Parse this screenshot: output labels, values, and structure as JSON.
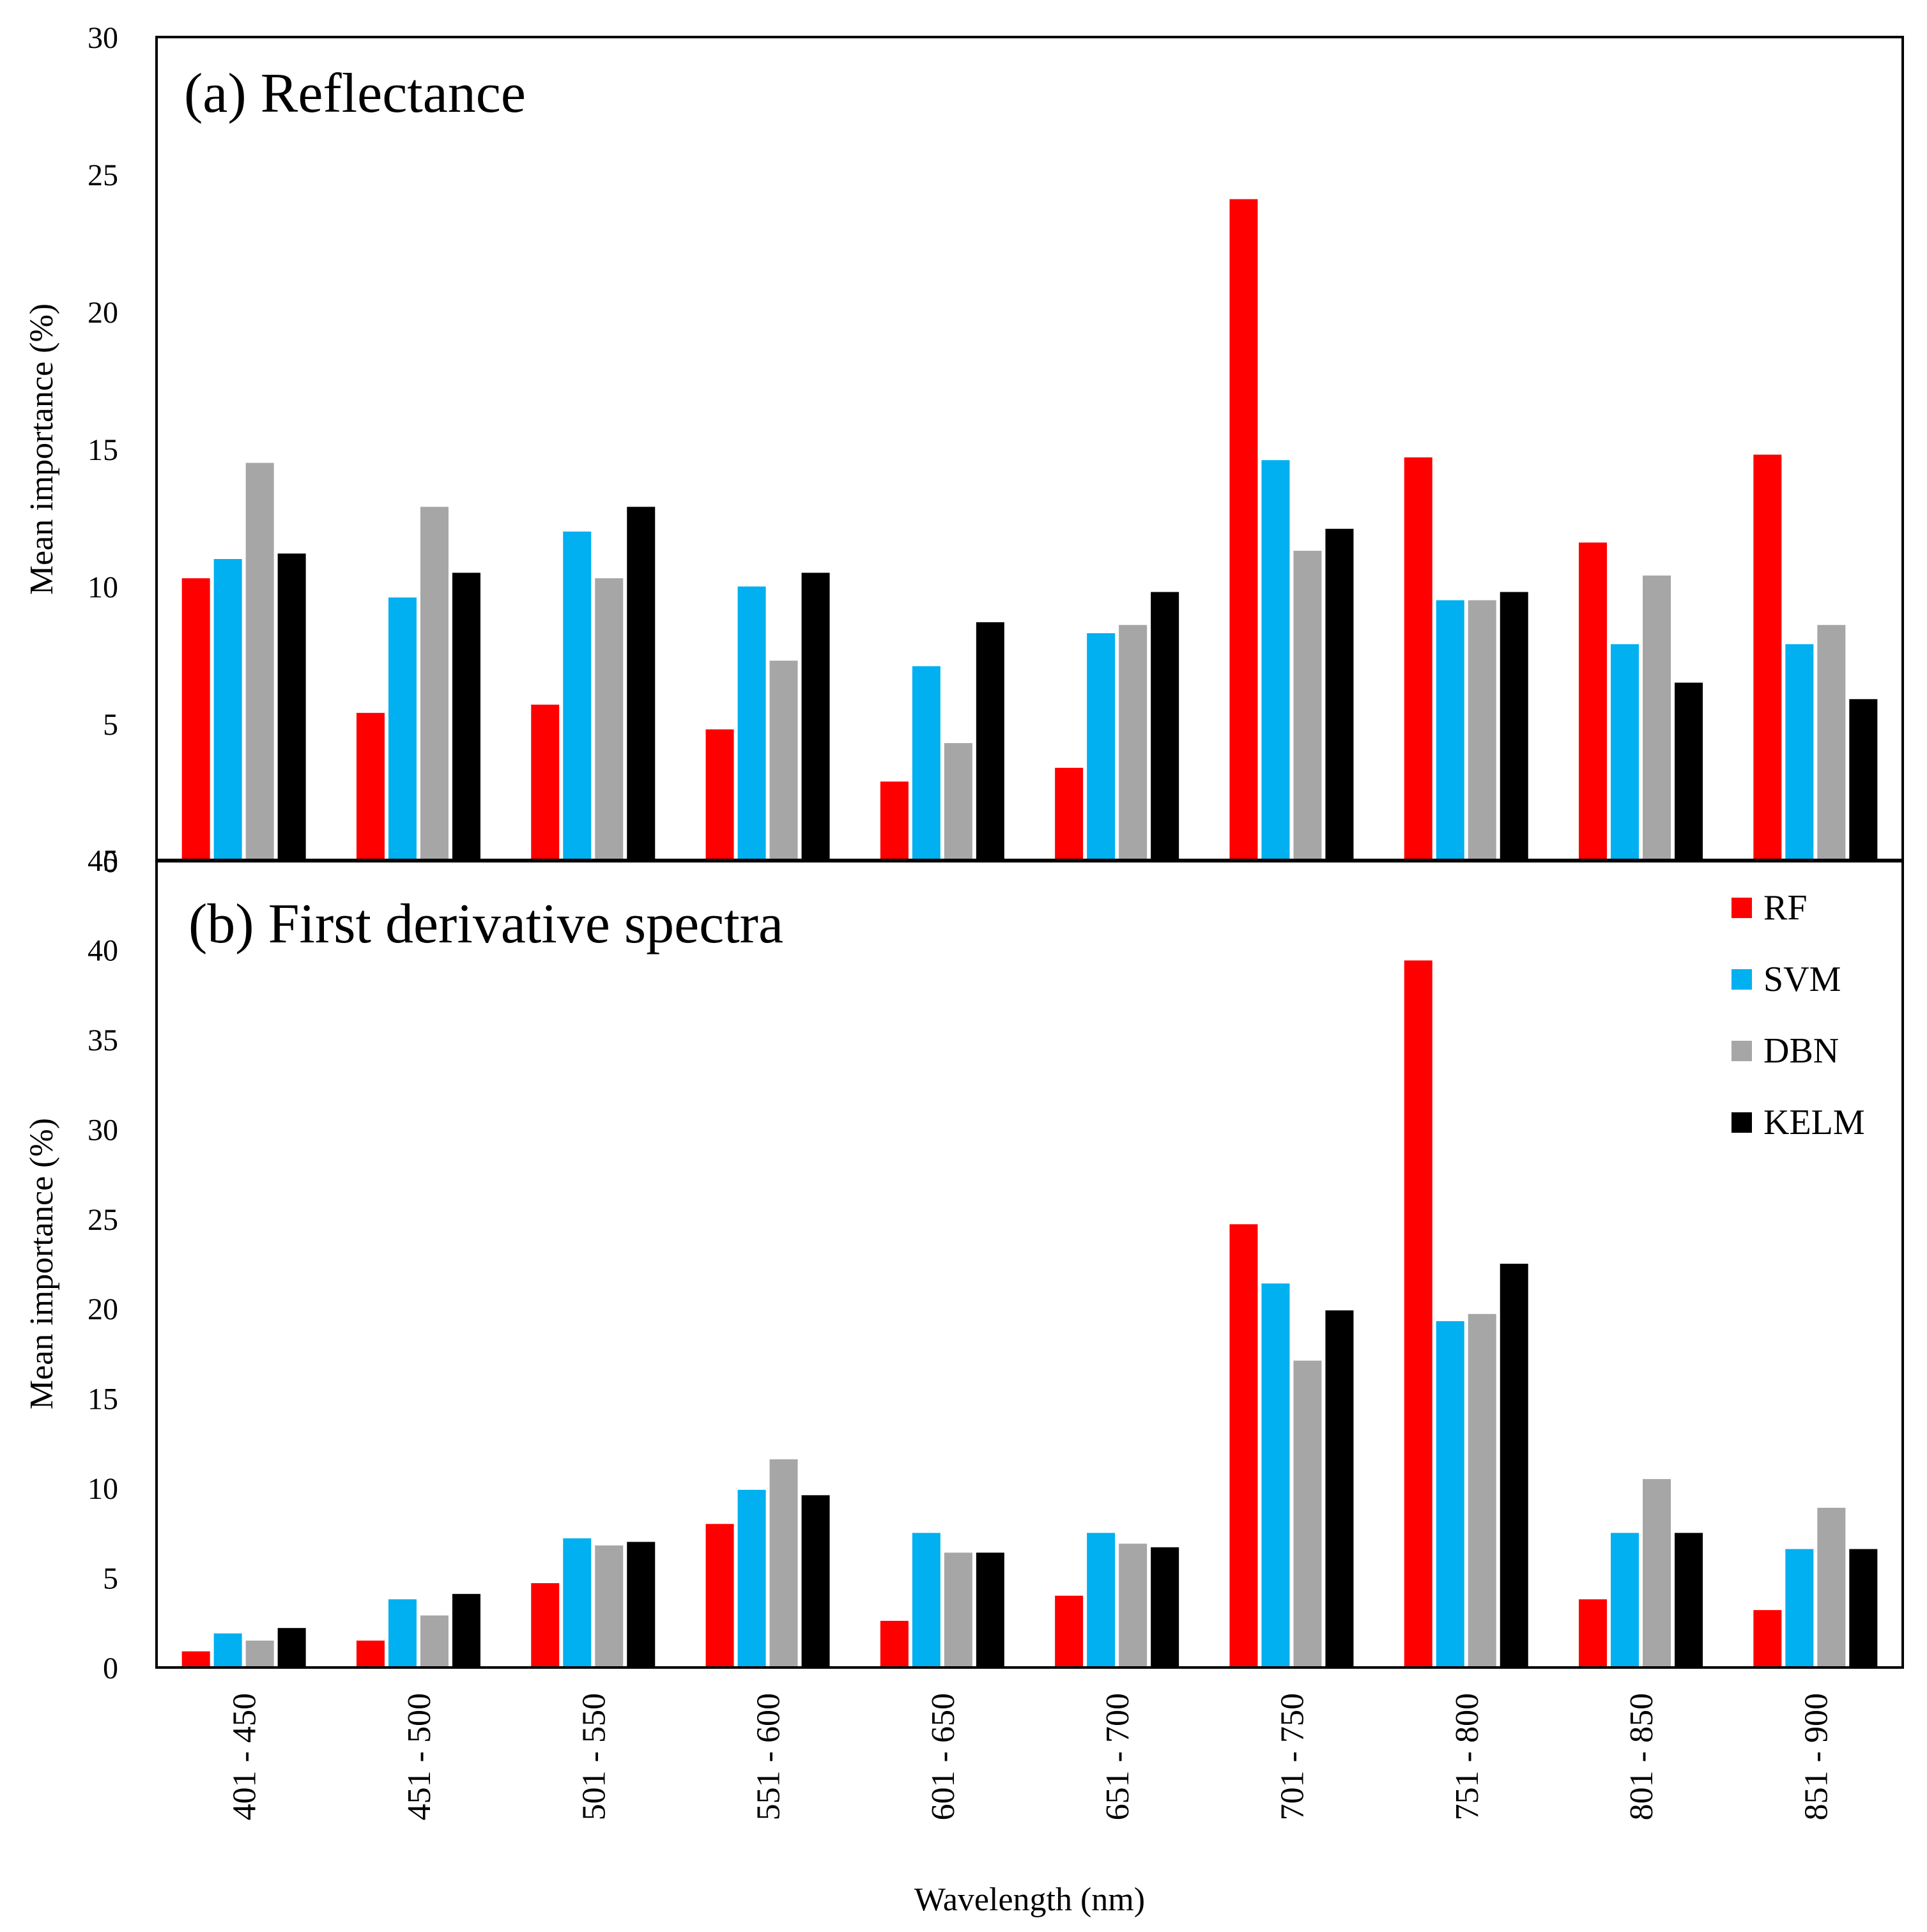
{
  "chart_data": [
    {
      "type": "bar",
      "title": "(a) Reflectance",
      "xlabel": "",
      "ylabel": "Mean importance  (%)",
      "ylim": [
        0,
        30
      ],
      "yticks": [
        0,
        5,
        10,
        15,
        20,
        25,
        30
      ],
      "categories": [
        "401 - 450",
        "451 - 500",
        "501 - 550",
        "551 - 600",
        "601 - 650",
        "651 - 700",
        "701 - 750",
        "751 - 800",
        "801 - 850",
        "851 - 900"
      ],
      "series": [
        {
          "name": "RF",
          "values": [
            10.3,
            5.4,
            5.7,
            4.8,
            2.9,
            3.4,
            24.1,
            14.7,
            11.6,
            14.8
          ]
        },
        {
          "name": "SVM",
          "values": [
            11.0,
            9.6,
            12.0,
            10.0,
            7.1,
            8.3,
            14.6,
            9.5,
            7.9,
            7.9
          ]
        },
        {
          "name": "DBN",
          "values": [
            14.5,
            12.9,
            10.3,
            7.3,
            4.3,
            8.6,
            11.3,
            9.5,
            10.4,
            8.6
          ]
        },
        {
          "name": "KELM",
          "values": [
            11.2,
            10.5,
            12.9,
            10.5,
            8.7,
            9.8,
            12.1,
            9.8,
            6.5,
            5.9
          ]
        }
      ]
    },
    {
      "type": "bar",
      "title": "(b) First derivative spectra",
      "xlabel": "Wavelength  (nm)",
      "ylabel": "Mean importance  (%)",
      "ylim": [
        0,
        45
      ],
      "yticks": [
        0,
        5,
        10,
        15,
        20,
        25,
        30,
        35,
        40,
        45
      ],
      "categories": [
        "401 - 450",
        "451 - 500",
        "501 - 550",
        "551 - 600",
        "601 - 650",
        "651 - 700",
        "701 - 750",
        "751 - 800",
        "801 - 850",
        "851 - 900"
      ],
      "series": [
        {
          "name": "RF",
          "values": [
            0.9,
            1.5,
            4.7,
            8.0,
            2.6,
            4.0,
            24.7,
            39.4,
            3.8,
            3.2
          ]
        },
        {
          "name": "SVM",
          "values": [
            1.9,
            3.8,
            7.2,
            9.9,
            7.5,
            7.5,
            21.4,
            19.3,
            7.5,
            6.6
          ]
        },
        {
          "name": "DBN",
          "values": [
            1.5,
            2.9,
            6.8,
            11.6,
            6.4,
            6.9,
            17.1,
            19.7,
            10.5,
            8.9
          ]
        },
        {
          "name": "KELM",
          "values": [
            2.2,
            4.1,
            7.0,
            9.6,
            6.4,
            6.7,
            19.9,
            22.5,
            7.5,
            6.6
          ]
        }
      ],
      "legend": {
        "placement": "top-right",
        "entries": [
          "RF",
          "SVM",
          "DBN",
          "KELM"
        ]
      }
    }
  ],
  "colors": {
    "RF": "#ff0000",
    "SVM": "#00b0f0",
    "DBN": "#a6a6a6",
    "KELM": "#000000"
  }
}
